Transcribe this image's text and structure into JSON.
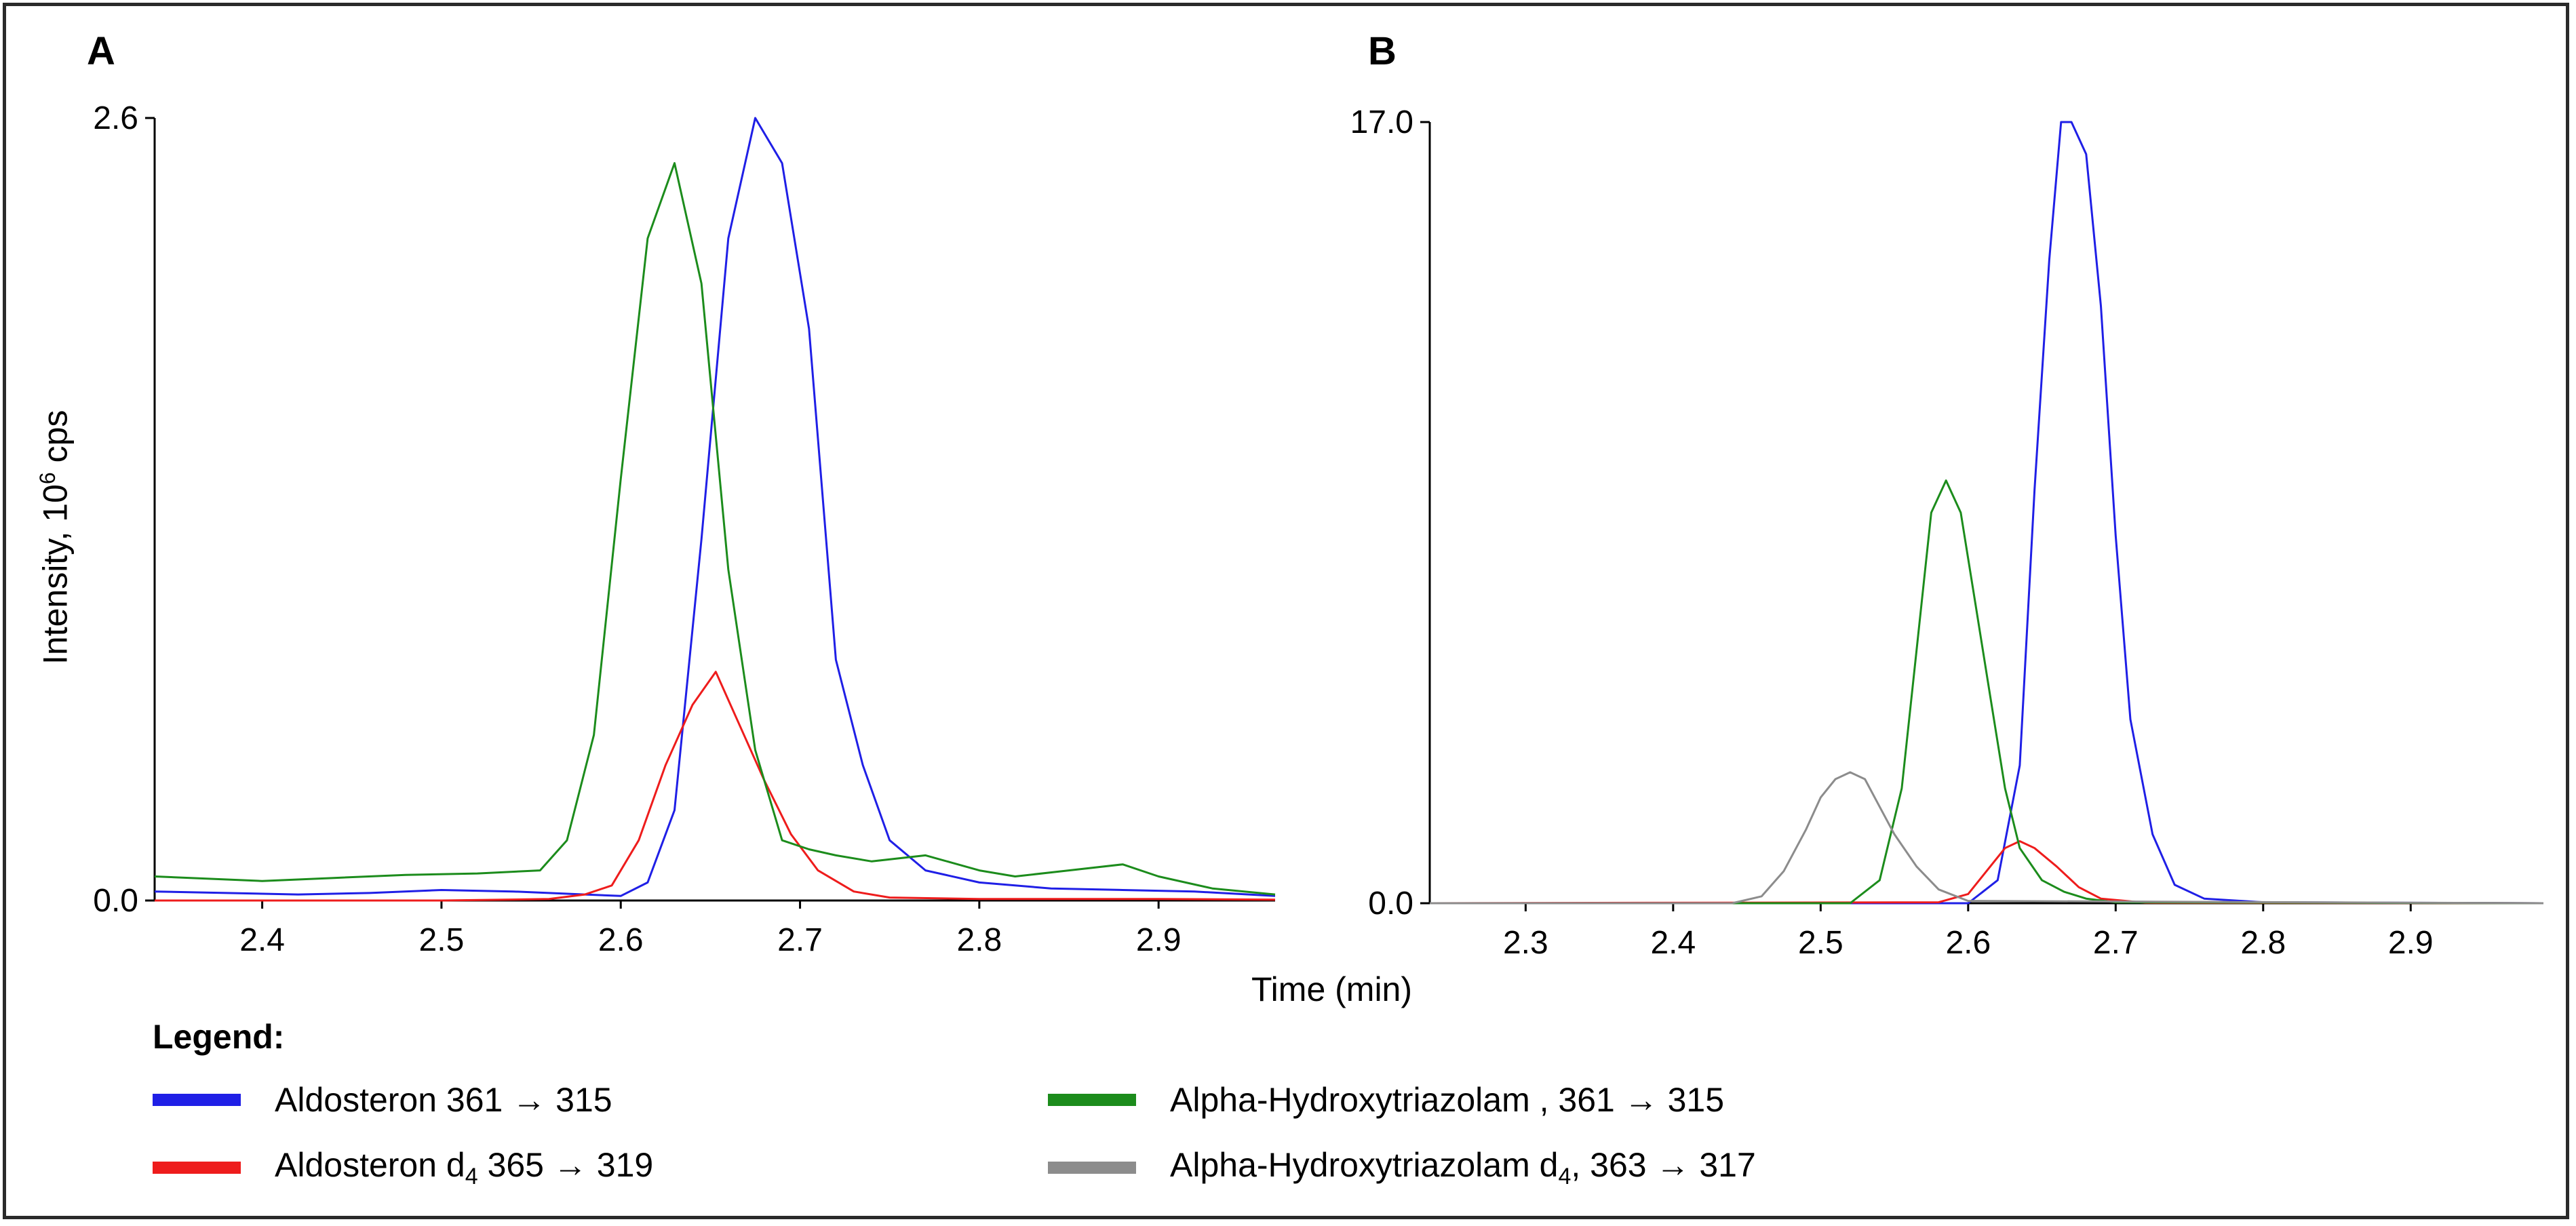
{
  "y_label_text": "Intensity, 10",
  "y_label_sup": "6",
  "y_label_unit": " cps",
  "x_label": "Time (min)",
  "legend": {
    "title": "Legend:",
    "items": [
      {
        "name": "Aldosteron 361 → 315",
        "pre": "Aldosteron 361 ",
        "arrow": "→",
        "post": " 315",
        "sub": "",
        "color": "#1f1fe6"
      },
      {
        "name": "Aldosteron d4 365 → 319",
        "pre": "Aldosteron d",
        "sub": "4",
        "mid": " 365 ",
        "arrow": "→",
        "post": " 319",
        "color": "#ee1c1c"
      },
      {
        "name": "Alpha-Hydroxytriazolam , 361 → 315",
        "pre": "Alpha-Hydroxytriazolam , 361 ",
        "arrow": "→",
        "post": " 315",
        "sub": "",
        "color": "#1c8c1c"
      },
      {
        "name": "Alpha-Hydroxytriazolam d4, 363 → 317",
        "pre": "Alpha-Hydroxytriazolam d",
        "sub": "4",
        "mid": ", 363 ",
        "arrow": "→",
        "post": " 317",
        "color": "#8c8c8c"
      }
    ]
  },
  "chart_data": [
    {
      "type": "line",
      "panel": "A",
      "ylabel": "Intensity, 10^6 cps",
      "xlabel": "Time (min)",
      "xlim": [
        2.34,
        2.965
      ],
      "ylim": [
        0.0,
        2.6
      ],
      "x_ticks": [
        2.4,
        2.5,
        2.6,
        2.7,
        2.8,
        2.9
      ],
      "x_tick_labels": [
        "2.4",
        "2.5",
        "2.6",
        "2.7",
        "2.8",
        "2.9"
      ],
      "y_ticks": [
        0.0,
        2.6
      ],
      "y_tick_labels": [
        "0.0",
        "2.6"
      ],
      "series": [
        {
          "name": "Aldosteron 361 → 315",
          "color": "#1f1fe6",
          "x": [
            2.34,
            2.38,
            2.42,
            2.46,
            2.5,
            2.54,
            2.58,
            2.6,
            2.615,
            2.63,
            2.645,
            2.66,
            2.675,
            2.69,
            2.705,
            2.72,
            2.735,
            2.75,
            2.77,
            2.8,
            2.84,
            2.88,
            2.92,
            2.965
          ],
          "y": [
            0.03,
            0.025,
            0.02,
            0.025,
            0.035,
            0.03,
            0.02,
            0.015,
            0.06,
            0.3,
            1.2,
            2.2,
            2.6,
            2.45,
            1.9,
            0.8,
            0.45,
            0.2,
            0.1,
            0.06,
            0.04,
            0.035,
            0.03,
            0.015
          ]
        },
        {
          "name": "Aldosteron d4 365 → 319",
          "color": "#ee1c1c",
          "x": [
            2.34,
            2.4,
            2.5,
            2.56,
            2.58,
            2.595,
            2.61,
            2.625,
            2.64,
            2.653,
            2.665,
            2.68,
            2.695,
            2.71,
            2.73,
            2.75,
            2.8,
            2.9,
            2.965
          ],
          "y": [
            0.0,
            0.0,
            0.0,
            0.005,
            0.02,
            0.05,
            0.2,
            0.45,
            0.65,
            0.76,
            0.6,
            0.4,
            0.22,
            0.1,
            0.03,
            0.01,
            0.005,
            0.005,
            0.003
          ]
        },
        {
          "name": "Alpha-Hydroxytriazolam , 361 → 315",
          "color": "#1c8c1c",
          "x": [
            2.34,
            2.36,
            2.4,
            2.44,
            2.48,
            2.52,
            2.555,
            2.57,
            2.585,
            2.6,
            2.615,
            2.63,
            2.645,
            2.66,
            2.675,
            2.69,
            2.705,
            2.72,
            2.74,
            2.77,
            2.8,
            2.82,
            2.85,
            2.88,
            2.9,
            2.93,
            2.965
          ],
          "y": [
            0.08,
            0.075,
            0.065,
            0.075,
            0.085,
            0.09,
            0.1,
            0.2,
            0.55,
            1.4,
            2.2,
            2.45,
            2.05,
            1.1,
            0.5,
            0.2,
            0.17,
            0.15,
            0.13,
            0.15,
            0.1,
            0.08,
            0.1,
            0.12,
            0.08,
            0.04,
            0.02
          ]
        }
      ]
    },
    {
      "type": "line",
      "panel": "B",
      "ylabel": "Intensity, 10^6 cps",
      "xlabel": "Time (min)",
      "xlim": [
        2.235,
        2.99
      ],
      "ylim": [
        0.0,
        17.0
      ],
      "x_ticks": [
        2.3,
        2.4,
        2.5,
        2.6,
        2.7,
        2.8,
        2.9
      ],
      "x_tick_labels": [
        "2.3",
        "2.4",
        "2.5",
        "2.6",
        "2.7",
        "2.8",
        "2.9"
      ],
      "y_ticks": [
        0.0,
        17.0
      ],
      "y_tick_labels": [
        "0.0",
        "17.0"
      ],
      "series": [
        {
          "name": "Aldosteron 361 → 315",
          "color": "#1f1fe6",
          "x": [
            2.235,
            2.6,
            2.62,
            2.635,
            2.645,
            2.655,
            2.663,
            2.67,
            2.68,
            2.69,
            2.7,
            2.71,
            2.725,
            2.74,
            2.76,
            2.8,
            2.99
          ],
          "y": [
            0.0,
            0.0,
            0.5,
            3.0,
            9.0,
            14.0,
            17.0,
            17.0,
            16.3,
            13.0,
            8.0,
            4.0,
            1.5,
            0.4,
            0.1,
            0.02,
            0.0
          ]
        },
        {
          "name": "Aldosteron d4 365 → 319",
          "color": "#ee1c1c",
          "x": [
            2.235,
            2.58,
            2.6,
            2.615,
            2.625,
            2.635,
            2.645,
            2.66,
            2.675,
            2.69,
            2.72,
            2.99
          ],
          "y": [
            0.0,
            0.02,
            0.2,
            0.8,
            1.2,
            1.35,
            1.2,
            0.8,
            0.35,
            0.1,
            0.01,
            0.0
          ]
        },
        {
          "name": "Alpha-Hydroxytriazolam , 361 → 315",
          "color": "#1c8c1c",
          "x": [
            2.235,
            2.52,
            2.54,
            2.555,
            2.565,
            2.575,
            2.585,
            2.595,
            2.605,
            2.615,
            2.625,
            2.635,
            2.65,
            2.665,
            2.68,
            2.7,
            2.99
          ],
          "y": [
            0.0,
            0.0,
            0.5,
            2.5,
            5.5,
            8.5,
            9.2,
            8.5,
            6.5,
            4.5,
            2.5,
            1.2,
            0.5,
            0.25,
            0.1,
            0.02,
            0.0
          ]
        },
        {
          "name": "Alpha-Hydroxytriazolam d4, 363 → 317",
          "color": "#8c8c8c",
          "x": [
            2.235,
            2.44,
            2.46,
            2.475,
            2.49,
            2.5,
            2.51,
            2.52,
            2.53,
            2.54,
            2.55,
            2.565,
            2.58,
            2.6,
            2.99
          ],
          "y": [
            0.0,
            0.0,
            0.15,
            0.7,
            1.6,
            2.3,
            2.7,
            2.85,
            2.7,
            2.1,
            1.5,
            0.8,
            0.3,
            0.05,
            0.0
          ]
        }
      ]
    }
  ]
}
